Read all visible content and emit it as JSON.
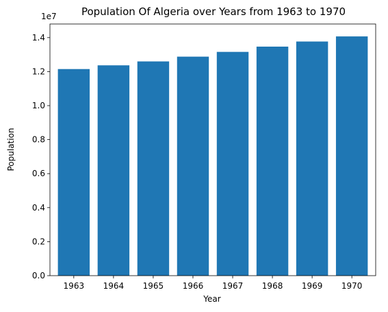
{
  "chart_data": {
    "type": "bar",
    "title": "Population Of Algeria over Years from 1963 to 1970",
    "xlabel": "Year",
    "ylabel": "Population",
    "categories": [
      "1963",
      "1964",
      "1965",
      "1966",
      "1967",
      "1968",
      "1969",
      "1970"
    ],
    "values": [
      12150000,
      12370000,
      12600000,
      12880000,
      13160000,
      13470000,
      13770000,
      14070000
    ],
    "ylim": [
      0,
      14800000
    ],
    "yticks": [
      0,
      2000000,
      4000000,
      6000000,
      8000000,
      10000000,
      12000000,
      14000000
    ],
    "ytick_labels": [
      "0.0",
      "0.2",
      "0.4",
      "0.6",
      "0.8",
      "1.0",
      "1.2",
      "1.4"
    ],
    "y_offset_label": "1e7",
    "bar_color": "#1f77b4",
    "grid": false,
    "legend": "none"
  }
}
